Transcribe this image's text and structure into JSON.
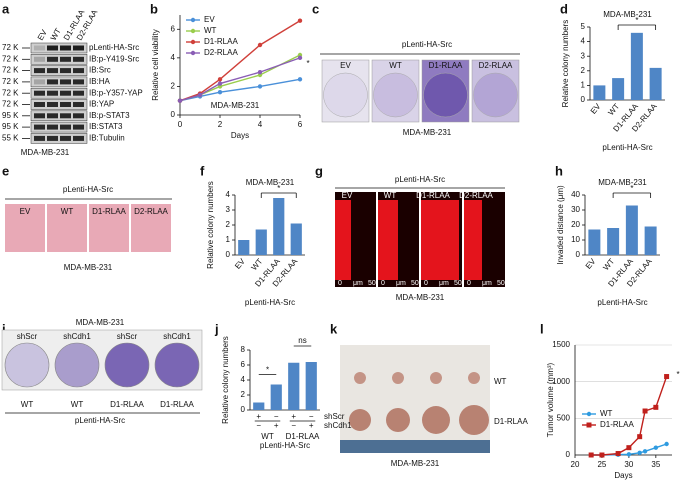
{
  "panel_labels": [
    "a",
    "b",
    "c",
    "d",
    "e",
    "f",
    "g",
    "h",
    "i",
    "j",
    "k",
    "l"
  ],
  "blot": {
    "lanes": [
      "EV",
      "WT",
      "D1-RLAA",
      "D2-RLAA"
    ],
    "rows": [
      {
        "size": "72 K",
        "label": "pLenti-HA-Src"
      },
      {
        "size": "72 K",
        "label": "IB:p-Y419-Src"
      },
      {
        "size": "72 K",
        "label": "IB:Src"
      },
      {
        "size": "72 K",
        "label": "IB:HA"
      },
      {
        "size": "72 K",
        "label": "IB:p-Y357-YAP"
      },
      {
        "size": "72 K",
        "label": "IB:YAP"
      },
      {
        "size": "95 K",
        "label": "IB:p-STAT3"
      },
      {
        "size": "95 K",
        "label": "IB:STAT3"
      },
      {
        "size": "55 K",
        "label": "IB:Tubulin"
      }
    ],
    "caption": "MDA-MB-231"
  },
  "colony_plates": {
    "title": "pLenti-HA-Src",
    "labels": [
      "EV",
      "WT",
      "D1-RLAA",
      "D2-RLAA"
    ],
    "caption": "MDA-MB-231"
  },
  "soft_agar": {
    "title": "pLenti-HA-Src",
    "labels": [
      "EV",
      "WT",
      "D1-RLAA",
      "D2-RLAA"
    ],
    "caption": "MDA-MB-231"
  },
  "invasion": {
    "title": "pLenti-HA-Src",
    "labels": [
      "EV",
      "WT",
      "D1-RLAA",
      "D2-RLAA"
    ],
    "scale": [
      "0",
      "μm",
      "50"
    ],
    "caption": "MDA-MB-231"
  },
  "knockdown_plates": {
    "title": "MDA-MB-231",
    "top": [
      "shScr",
      "shCdh1",
      "shScr",
      "shCdh1"
    ],
    "bottom": [
      "WT",
      "WT",
      "D1-RLAA",
      "D1-RLAA"
    ],
    "caption": "pLenti-HA-Src"
  },
  "tumors": {
    "labels": [
      "WT",
      "D1-RLAA"
    ],
    "caption": "MDA-MB-231"
  },
  "chart_data": [
    {
      "type": "line",
      "ylabel": "Relative cell viability",
      "xlabel": "Days",
      "annotations": [
        "MDA-MB-231",
        "*"
      ],
      "x": [
        0,
        1,
        2,
        4,
        6
      ],
      "xlim": [
        0,
        6
      ],
      "xticks": [
        0,
        2,
        4,
        6
      ],
      "ylim": [
        0,
        7
      ],
      "yticks": [
        0,
        2,
        4,
        6
      ],
      "series": [
        {
          "name": "EV",
          "color": "#4a90d9",
          "marker": "circle",
          "values": [
            1,
            1.3,
            1.6,
            2.0,
            2.5
          ]
        },
        {
          "name": "WT",
          "color": "#9acd4c",
          "marker": "circle",
          "values": [
            1,
            1.4,
            2.0,
            2.8,
            4.2
          ]
        },
        {
          "name": "D1-RLAA",
          "color": "#d0403a",
          "marker": "circle",
          "values": [
            1,
            1.5,
            2.5,
            4.9,
            6.6
          ]
        },
        {
          "name": "D2-RLAA",
          "color": "#8a5db5",
          "marker": "circle",
          "values": [
            1,
            1.4,
            2.2,
            3.0,
            4.0
          ]
        }
      ]
    },
    {
      "type": "bar",
      "title": "MDA-MB-231",
      "ylabel": "Relative colony numbers",
      "xlabel": "pLenti-HA-Src",
      "annotations": [
        "*"
      ],
      "categories": [
        "EV",
        "WT",
        "D1-RLAA",
        "D2-RLAA"
      ],
      "values": [
        1,
        1.5,
        4.6,
        2.2
      ],
      "color": "#4f86c6",
      "ylim": [
        0,
        5
      ],
      "yticks": [
        0,
        1,
        2,
        3,
        4,
        5
      ]
    },
    {
      "type": "bar",
      "title": "MDA-MB-231",
      "ylabel": "Relative colony numbers",
      "xlabel": "pLenti-HA-Src",
      "annotations": [
        "*"
      ],
      "categories": [
        "EV",
        "WT",
        "D1-RLAA",
        "D2-RLAA"
      ],
      "values": [
        1,
        1.7,
        3.8,
        2.1
      ],
      "color": "#4f86c6",
      "ylim": [
        0,
        4
      ],
      "yticks": [
        0,
        1,
        2,
        3,
        4
      ]
    },
    {
      "type": "bar",
      "title": "MDA-MB-231",
      "ylabel": "Invaded distance (μm)",
      "xlabel": "pLenti-HA-Src",
      "annotations": [
        "*"
      ],
      "categories": [
        "EV",
        "WT",
        "D1-RLAA",
        "D2-RLAA"
      ],
      "values": [
        17,
        18,
        33,
        19
      ],
      "color": "#4f86c6",
      "ylim": [
        0,
        40
      ],
      "yticks": [
        0,
        10,
        20,
        30,
        40
      ]
    },
    {
      "type": "bar",
      "ylabel": "Relative colony numbers",
      "xlabel": "pLenti-HA-Src",
      "annotations": [
        "*",
        "ns"
      ],
      "categories": [
        null,
        null,
        null,
        null
      ],
      "values": [
        1,
        3.4,
        6.3,
        6.4
      ],
      "color": "#4f86c6",
      "ylim": [
        0,
        8
      ],
      "yticks": [
        0,
        2,
        4,
        6,
        8
      ],
      "conditions": [
        {
          "name": "shScr",
          "signs": [
            "+",
            "−",
            "+",
            "−"
          ]
        },
        {
          "name": "shCdh1",
          "signs": [
            "−",
            "+",
            "−",
            "+"
          ]
        }
      ],
      "groups": [
        "WT",
        "D1-RLAA"
      ]
    },
    {
      "type": "line",
      "ylabel": "Tumor volume (mm³)",
      "xlabel": "Days",
      "annotations": [
        "*"
      ],
      "x": [
        23,
        25,
        28,
        30,
        32,
        33,
        35,
        37
      ],
      "xlim": [
        20,
        38
      ],
      "xticks": [
        20,
        25,
        30,
        35
      ],
      "ylim": [
        0,
        1500
      ],
      "yticks": [
        0,
        500,
        1000,
        1500
      ],
      "grid": true,
      "series": [
        {
          "name": "WT",
          "color": "#2f9be0",
          "marker": "circle",
          "values": [
            0,
            0,
            5,
            10,
            30,
            50,
            100,
            150
          ]
        },
        {
          "name": "D1-RLAA",
          "color": "#c0201c",
          "marker": "square",
          "values": [
            0,
            0,
            20,
            100,
            250,
            600,
            650,
            1070
          ]
        }
      ]
    }
  ]
}
